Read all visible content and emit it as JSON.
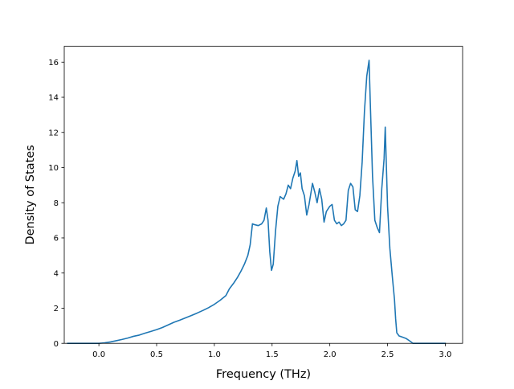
{
  "chart_data": {
    "type": "line",
    "title": "",
    "xlabel": "Frequency (THz)",
    "ylabel": "Density of States",
    "xlim": [
      -0.3,
      3.15
    ],
    "ylim": [
      0,
      16.9
    ],
    "xticks": [
      0.0,
      0.5,
      1.0,
      1.5,
      2.0,
      2.5,
      3.0
    ],
    "xtick_labels": [
      "0.0",
      "0.5",
      "1.0",
      "1.5",
      "2.0",
      "2.5",
      "3.0"
    ],
    "yticks": [
      0,
      2,
      4,
      6,
      8,
      10,
      12,
      14,
      16
    ],
    "ytick_labels": [
      "0",
      "2",
      "4",
      "6",
      "8",
      "10",
      "12",
      "14",
      "16"
    ],
    "grid": false,
    "legend": "none",
    "series": [
      {
        "color": "#1f77b4",
        "x": [
          -0.27,
          0.0,
          0.05,
          0.1,
          0.15,
          0.2,
          0.25,
          0.3,
          0.35,
          0.4,
          0.45,
          0.5,
          0.55,
          0.6,
          0.65,
          0.7,
          0.75,
          0.8,
          0.85,
          0.9,
          0.95,
          1.0,
          1.05,
          1.1,
          1.13,
          1.17,
          1.2,
          1.23,
          1.26,
          1.29,
          1.31,
          1.33,
          1.35,
          1.38,
          1.41,
          1.43,
          1.45,
          1.465,
          1.48,
          1.495,
          1.51,
          1.53,
          1.55,
          1.57,
          1.6,
          1.62,
          1.64,
          1.66,
          1.68,
          1.7,
          1.715,
          1.73,
          1.745,
          1.76,
          1.78,
          1.8,
          1.82,
          1.85,
          1.87,
          1.89,
          1.91,
          1.93,
          1.95,
          1.97,
          2.0,
          2.02,
          2.04,
          2.06,
          2.08,
          2.1,
          2.12,
          2.14,
          2.16,
          2.18,
          2.2,
          2.22,
          2.24,
          2.26,
          2.28,
          2.3,
          2.32,
          2.34,
          2.35,
          2.37,
          2.39,
          2.41,
          2.43,
          2.45,
          2.47,
          2.48,
          2.5,
          2.52,
          2.54,
          2.56,
          2.57,
          2.58,
          2.6,
          2.63,
          2.66,
          2.7,
          2.72,
          3.0
        ],
        "y": [
          0.0,
          0.0,
          0.03,
          0.08,
          0.15,
          0.22,
          0.3,
          0.4,
          0.47,
          0.58,
          0.68,
          0.78,
          0.9,
          1.05,
          1.2,
          1.32,
          1.45,
          1.58,
          1.72,
          1.87,
          2.03,
          2.22,
          2.45,
          2.72,
          3.1,
          3.45,
          3.75,
          4.1,
          4.5,
          5.0,
          5.6,
          6.8,
          6.75,
          6.7,
          6.8,
          7.0,
          7.7,
          7.0,
          5.2,
          4.15,
          4.5,
          6.4,
          7.8,
          8.35,
          8.2,
          8.5,
          9.0,
          8.8,
          9.4,
          9.8,
          10.4,
          9.5,
          9.7,
          8.8,
          8.4,
          7.3,
          7.9,
          9.1,
          8.6,
          8.0,
          8.8,
          8.2,
          6.9,
          7.5,
          7.8,
          7.9,
          7.0,
          6.8,
          6.9,
          6.7,
          6.8,
          7.0,
          8.7,
          9.1,
          8.9,
          7.6,
          7.5,
          8.4,
          10.3,
          13.2,
          15.2,
          16.1,
          13.8,
          9.5,
          7.0,
          6.6,
          6.3,
          8.8,
          10.5,
          12.3,
          7.8,
          5.4,
          3.9,
          2.5,
          1.4,
          0.6,
          0.42,
          0.35,
          0.28,
          0.1,
          0.0,
          0.0
        ]
      }
    ]
  }
}
